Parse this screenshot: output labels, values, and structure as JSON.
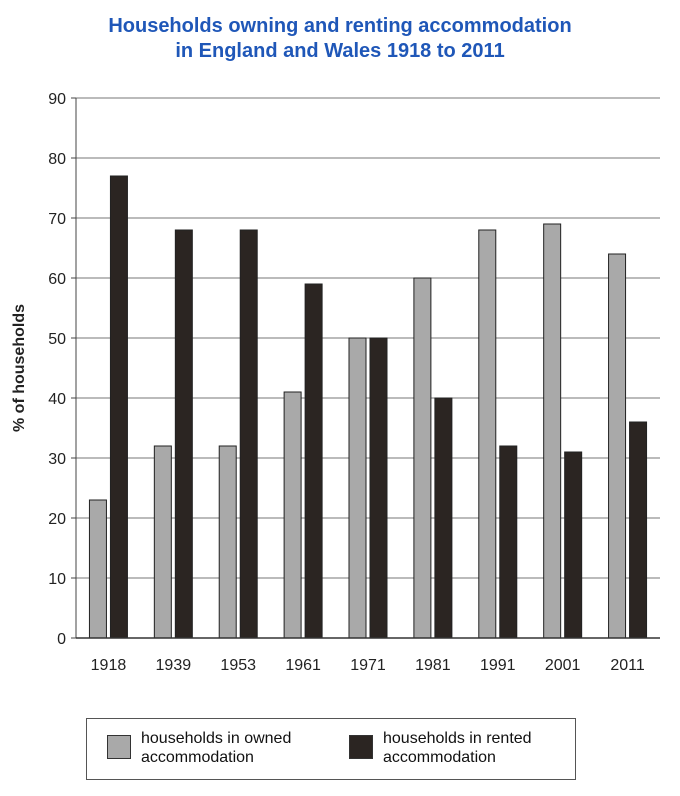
{
  "chart_data": {
    "type": "bar",
    "title_line1": "Households owning and renting accommodation",
    "title_line2": "in England and Wales 1918 to 2011",
    "xlabel": "",
    "ylabel": "% of households",
    "ylim": [
      0,
      90
    ],
    "yticks": [
      0,
      10,
      20,
      30,
      40,
      50,
      60,
      70,
      80,
      90
    ],
    "grid": true,
    "legend_position": "bottom",
    "categories": [
      "1918",
      "1939",
      "1953",
      "1961",
      "1971",
      "1981",
      "1991",
      "2001",
      "2011"
    ],
    "series": [
      {
        "name": "households in owned accommodation",
        "color": "#a9a9a9",
        "values": [
          23,
          32,
          32,
          41,
          50,
          60,
          68,
          69,
          64
        ]
      },
      {
        "name": "households in rented accommodation",
        "color": "#2b2522",
        "values": [
          77,
          68,
          68,
          59,
          50,
          40,
          32,
          31,
          36
        ]
      }
    ]
  }
}
